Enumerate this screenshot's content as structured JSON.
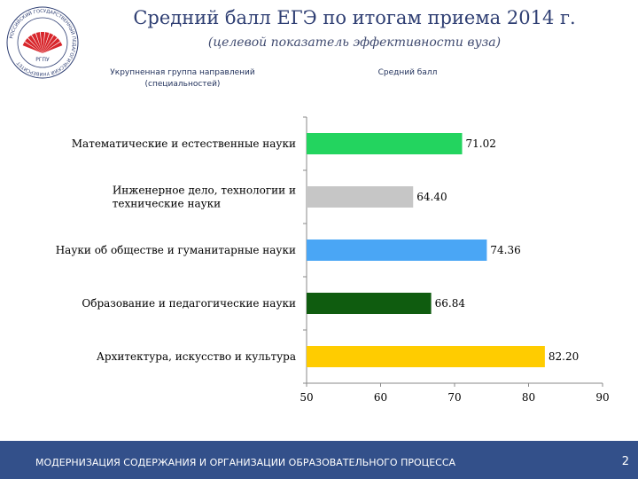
{
  "header": {
    "title": "Средний балл ЕГЭ по итогам приема 2014 г.",
    "subtitle": "(целевой показатель эффективности вуза)",
    "category_column_label": "Укрупненная группа направлений (специальностей)",
    "value_column_label": "Средний балл"
  },
  "logo": {
    "name": "university-logo",
    "ring_text": "РОССИЙСКИЙ ГОСУДАРСТВЕННЫЙ ПЕДАГОГИЧЕСКИЙ УНИВЕРСИТЕТ",
    "abbr": "РГПУ",
    "colors": {
      "rays": "#d8262b",
      "ring": "#2f3f73"
    }
  },
  "chart_data": {
    "type": "bar",
    "orientation": "horizontal",
    "categories": [
      "Математические и естественные науки",
      "Инженерное дело, технологии и технические науки",
      "Науки об обществе и гуманитарные науки",
      "Образование и педагогические науки",
      "Архитектура, искусство и культура"
    ],
    "values": [
      71.02,
      64.4,
      74.36,
      66.84,
      82.2
    ],
    "value_labels": [
      "71.02",
      "64.40",
      "74.36",
      "66.84",
      "82.20"
    ],
    "colors": [
      "#23d45f",
      "#c6c6c6",
      "#4aa6f5",
      "#0f5c0f",
      "#ffcc00"
    ],
    "xlim": [
      50,
      90
    ],
    "xticks": [
      "50",
      "60",
      "70",
      "80",
      "90"
    ],
    "xlabel": "",
    "ylabel": "",
    "grid": false,
    "legend": "none"
  },
  "footer": {
    "text": "МОДЕРНИЗАЦИЯ СОДЕРЖАНИЯ И ОРГАНИЗАЦИИ ОБРАЗОВАТЕЛЬНОГО ПРОЦЕССА",
    "page_number": "2",
    "background": "#33508a"
  }
}
